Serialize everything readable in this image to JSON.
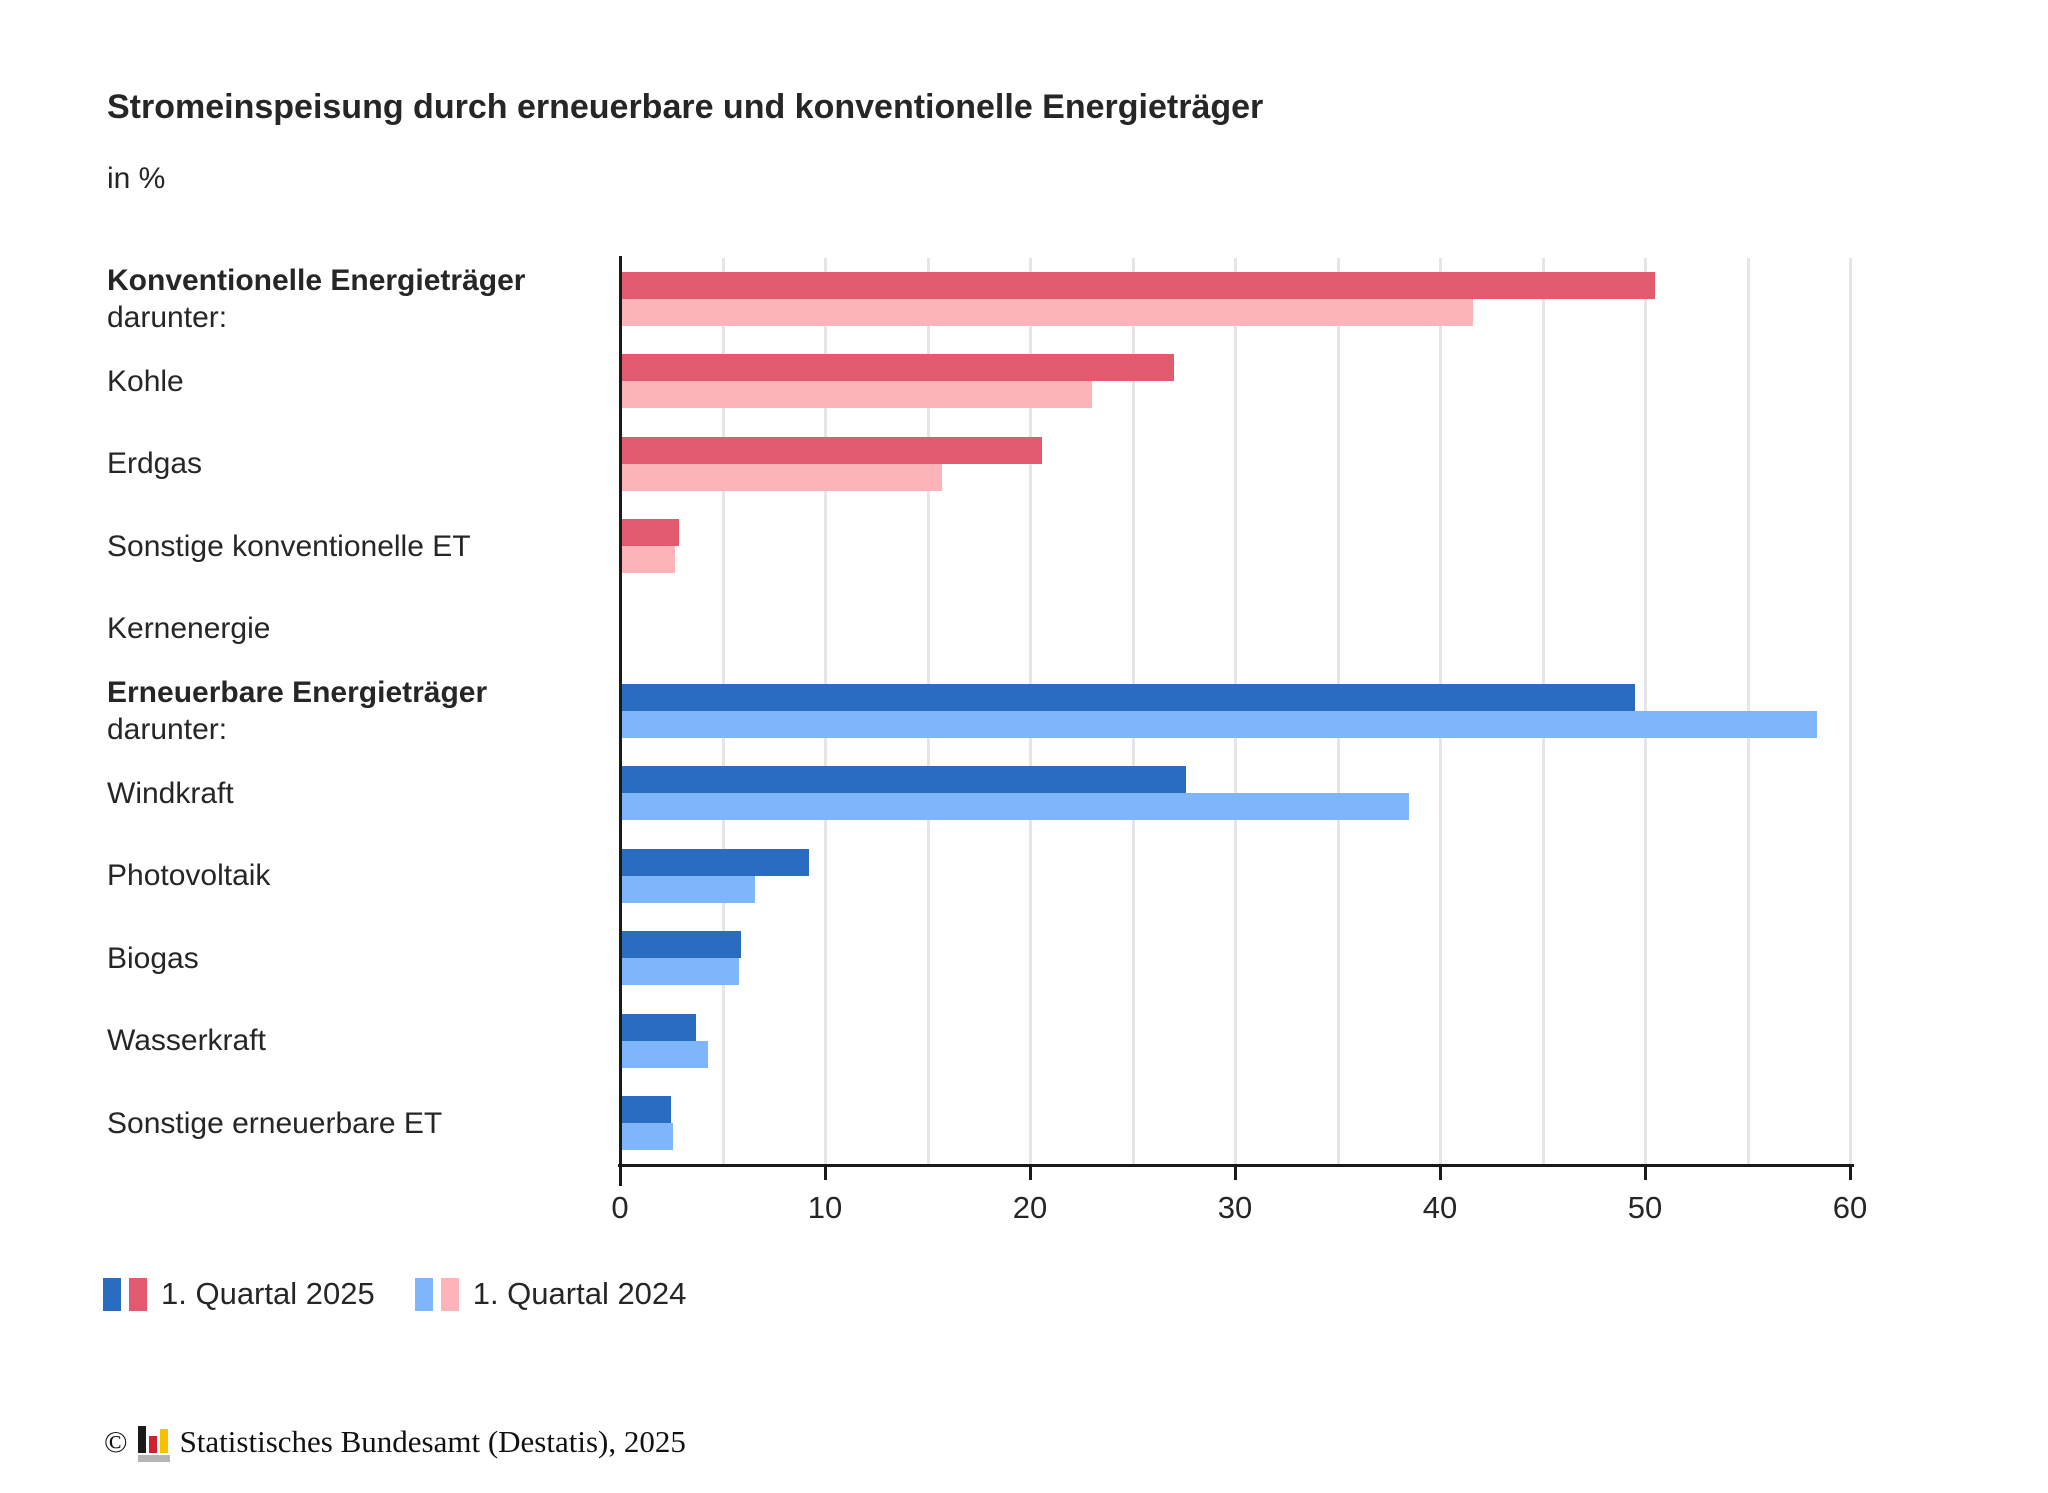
{
  "chart_data": {
    "type": "bar",
    "orientation": "horizontal",
    "title": "Stromeinspeisung durch erneuerbare und konventionelle Energieträger",
    "unit": "in %",
    "xlim": [
      0,
      60
    ],
    "xticks": [
      0,
      10,
      20,
      30,
      40,
      50,
      60
    ],
    "grid_step": 5,
    "grid": "on",
    "legend_position": "bottom",
    "categories": [
      "Konventionelle Energieträger",
      "Kohle",
      "Erdgas",
      "Sonstige konventionelle ET",
      "Kernenergie",
      "Erneuerbare Energieträger",
      "Windkraft",
      "Photovoltaik",
      "Biogas",
      "Wasserkraft",
      "Sonstige erneuerbare ET"
    ],
    "rows": [
      {
        "label": "Konventionelle Energieträger",
        "sublabel": "darunter:",
        "header": true,
        "palette": "conventional"
      },
      {
        "label": "Kohle",
        "sublabel": "",
        "header": false,
        "palette": "conventional"
      },
      {
        "label": "Erdgas",
        "sublabel": "",
        "header": false,
        "palette": "conventional"
      },
      {
        "label": "Sonstige konventionelle ET",
        "sublabel": "",
        "header": false,
        "palette": "conventional"
      },
      {
        "label": "Kernenergie",
        "sublabel": "",
        "header": false,
        "palette": "conventional"
      },
      {
        "label": "Erneuerbare Energieträger",
        "sublabel": "darunter:",
        "header": true,
        "palette": "renewable"
      },
      {
        "label": "Windkraft",
        "sublabel": "",
        "header": false,
        "palette": "renewable"
      },
      {
        "label": "Photovoltaik",
        "sublabel": "",
        "header": false,
        "palette": "renewable"
      },
      {
        "label": "Biogas",
        "sublabel": "",
        "header": false,
        "palette": "renewable"
      },
      {
        "label": "Wasserkraft",
        "sublabel": "",
        "header": false,
        "palette": "renewable"
      },
      {
        "label": "Sonstige erneuerbare ET",
        "sublabel": "",
        "header": false,
        "palette": "renewable"
      }
    ],
    "series": [
      {
        "name": "1. Quartal 2025",
        "values": [
          50.5,
          27.0,
          20.6,
          2.9,
          0,
          49.5,
          27.6,
          9.2,
          5.9,
          3.7,
          2.5
        ]
      },
      {
        "name": "1. Quartal 2024",
        "values": [
          41.6,
          23.0,
          15.7,
          2.7,
          0,
          58.4,
          38.5,
          6.6,
          5.8,
          4.3,
          2.6
        ]
      }
    ]
  },
  "colors": {
    "q1_2025_renewable": "#2a6cbf",
    "q1_2025_conventional": "#e25a6e",
    "q1_2024_renewable": "#7fb5fa",
    "q1_2024_conventional": "#fcb3ba",
    "grid": "#e6e6e6",
    "axis": "#1a1a1a",
    "text": "#262626",
    "logo_black": "#1a1a1a",
    "logo_red": "#d0222e",
    "logo_gold": "#f6c100",
    "logo_base": "#b5b5b5"
  },
  "legend": {
    "items": [
      {
        "label": "1. Quartal 2025",
        "chips": [
          "q1_2025_renewable",
          "q1_2025_conventional"
        ]
      },
      {
        "label": "1. Quartal 2024",
        "chips": [
          "q1_2024_renewable",
          "q1_2024_conventional"
        ]
      }
    ]
  },
  "footer": {
    "copyright": "©",
    "text": "Statistisches Bundesamt (Destatis), 2025"
  }
}
